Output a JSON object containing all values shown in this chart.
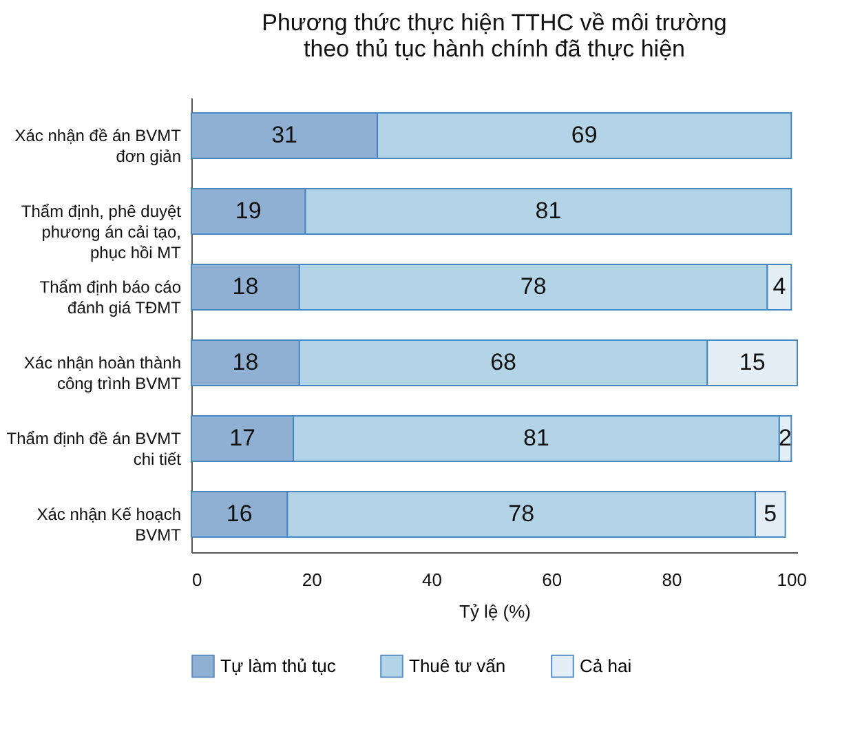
{
  "chart_data": {
    "type": "bar",
    "orientation": "horizontal",
    "stacked": true,
    "title": "Phương thức thực hiện TTHC về môi trường\ntheo thủ tục hành chính đã thực hiện",
    "xlabel": "Tỷ lệ (%)",
    "categories": [
      "Xác nhận đề án BVMT đơn giản",
      "Thẩm định, phê duyệt phương án cải tạo, phục hồi MT",
      "Thẩm định báo cáo đánh giá TĐMT",
      "Xác nhận hoàn thành công trình BVMT",
      "Thẩm định đề án BVMT chi tiết",
      "Xác nhận Kế hoạch BVMT"
    ],
    "series": [
      {
        "name": "Tự làm thủ tục",
        "color": "#8fb0d3",
        "values": [
          31,
          19,
          18,
          18,
          17,
          16
        ]
      },
      {
        "name": "Thuê tư vấn",
        "color": "#b3d3e6",
        "values": [
          69,
          81,
          78,
          68,
          81,
          78
        ]
      },
      {
        "name": "Cả hai",
        "color": "#e3eef7",
        "values": [
          null,
          null,
          4,
          15,
          2,
          5
        ]
      }
    ],
    "xlim": [
      0,
      101
    ],
    "xticks": [
      0,
      20,
      40,
      60,
      80,
      100
    ],
    "data_labels": true,
    "legend": "bottom",
    "grid": false
  }
}
